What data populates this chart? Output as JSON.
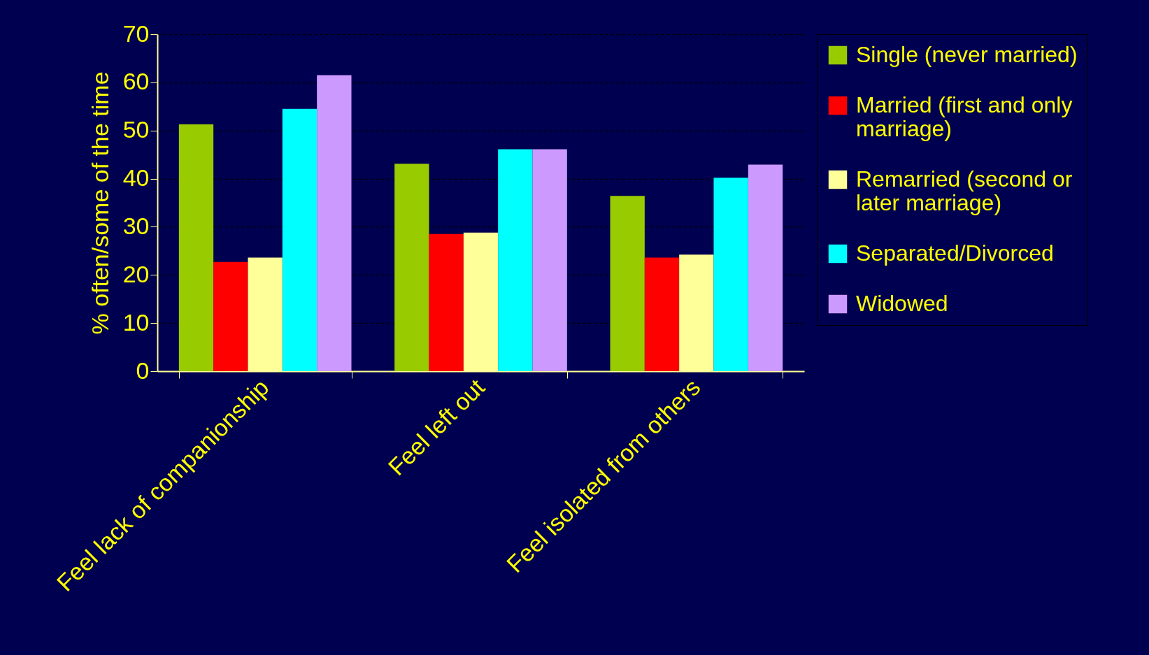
{
  "chart_data": {
    "type": "bar",
    "ylabel": "% often/some of the time",
    "categories": [
      "Feel lack of companionship",
      "Feel left out",
      "Feel isolated from others"
    ],
    "series": [
      {
        "name": "Single (never married)",
        "color": "#99cc00",
        "values": [
          51.3,
          43.1,
          36.4
        ]
      },
      {
        "name": "Married (first and only marriage)",
        "color": "#ff0000",
        "values": [
          22.7,
          28.5,
          23.6
        ]
      },
      {
        "name": "Remarried (second or later marriage)",
        "color": "#ffff99",
        "values": [
          23.6,
          28.8,
          24.2
        ]
      },
      {
        "name": "Separated/Divorced",
        "color": "#00ffff",
        "values": [
          54.5,
          46.1,
          40.2
        ]
      },
      {
        "name": "Widowed",
        "color": "#cc99ff",
        "values": [
          61.5,
          46.1,
          42.9
        ]
      }
    ],
    "ylim": [
      0,
      70
    ],
    "yticks": [
      0,
      10,
      20,
      30,
      40,
      50,
      60,
      70
    ],
    "grid": "y",
    "legend": "right"
  }
}
